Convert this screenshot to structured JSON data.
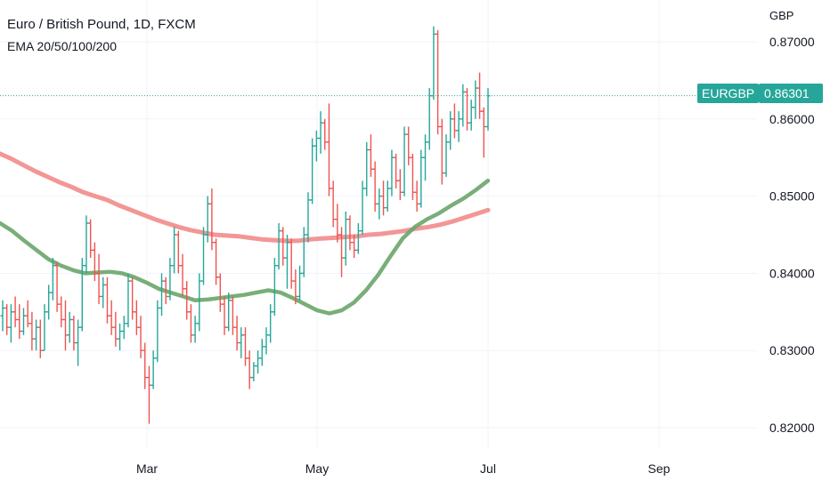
{
  "legend": {
    "title": "Euro / British Pound, 1D, FXCM",
    "indicator": "EMA 20/50/100/200"
  },
  "currency_label": "GBP",
  "price_tag": {
    "symbol": "EURGBP",
    "value": "0.86301"
  },
  "colors": {
    "up": "#26a69a",
    "down": "#ef5350",
    "ema_green": "#6aa56a",
    "ema_red": "#f28b8b",
    "grid": "#f0f3fa",
    "last_price_line": "#26a69a"
  },
  "chart_data": {
    "type": "line",
    "title": "Euro / British Pound, 1D, FXCM",
    "xlabel": "",
    "ylabel": "GBP",
    "x_ticks": [
      "Mar",
      "May",
      "Jul",
      "Sep"
    ],
    "y_ticks": [
      "0.82000",
      "0.83000",
      "0.84000",
      "0.85000",
      "0.86000",
      "0.87000"
    ],
    "ylim": [
      0.8185,
      0.8728
    ],
    "grid": true,
    "last_price": 0.86301,
    "series": [
      {
        "name": "",
        "style": "ohlc",
        "values": [
          [
            0.8345,
            0.8365,
            0.8325,
            0.8355
          ],
          [
            0.8355,
            0.836,
            0.832,
            0.833
          ],
          [
            0.833,
            0.836,
            0.831,
            0.835
          ],
          [
            0.835,
            0.837,
            0.833,
            0.834
          ],
          [
            0.834,
            0.836,
            0.8315,
            0.8325
          ],
          [
            0.8325,
            0.8355,
            0.832,
            0.8345
          ],
          [
            0.8345,
            0.8365,
            0.833,
            0.8335
          ],
          [
            0.8335,
            0.835,
            0.83,
            0.8315
          ],
          [
            0.8315,
            0.834,
            0.83,
            0.833
          ],
          [
            0.833,
            0.834,
            0.829,
            0.83
          ],
          [
            0.83,
            0.836,
            0.83,
            0.835
          ],
          [
            0.835,
            0.8385,
            0.834,
            0.8375
          ],
          [
            0.8375,
            0.842,
            0.8365,
            0.841
          ],
          [
            0.841,
            0.8415,
            0.835,
            0.836
          ],
          [
            0.836,
            0.837,
            0.833,
            0.834
          ],
          [
            0.834,
            0.8365,
            0.83,
            0.832
          ],
          [
            0.832,
            0.835,
            0.831,
            0.834
          ],
          [
            0.834,
            0.8345,
            0.83,
            0.831
          ],
          [
            0.831,
            0.834,
            0.828,
            0.833
          ],
          [
            0.833,
            0.842,
            0.8325,
            0.841
          ],
          [
            0.841,
            0.8475,
            0.84,
            0.8465
          ],
          [
            0.8465,
            0.847,
            0.842,
            0.843
          ],
          [
            0.843,
            0.844,
            0.839,
            0.84
          ],
          [
            0.84,
            0.8425,
            0.836,
            0.837
          ],
          [
            0.837,
            0.8395,
            0.8355,
            0.8385
          ],
          [
            0.8385,
            0.8395,
            0.8335,
            0.8345
          ],
          [
            0.8345,
            0.8365,
            0.832,
            0.833
          ],
          [
            0.833,
            0.835,
            0.8305,
            0.8315
          ],
          [
            0.8315,
            0.8335,
            0.83,
            0.8325
          ],
          [
            0.8325,
            0.8345,
            0.8315,
            0.8335
          ],
          [
            0.8335,
            0.84,
            0.833,
            0.839
          ],
          [
            0.839,
            0.8395,
            0.834,
            0.835
          ],
          [
            0.835,
            0.8365,
            0.832,
            0.833
          ],
          [
            0.833,
            0.8345,
            0.829,
            0.83
          ],
          [
            0.83,
            0.831,
            0.825,
            0.8265
          ],
          [
            0.8265,
            0.828,
            0.8205,
            0.8255
          ],
          [
            0.8255,
            0.83,
            0.825,
            0.829
          ],
          [
            0.829,
            0.8365,
            0.8285,
            0.8355
          ],
          [
            0.8355,
            0.84,
            0.8345,
            0.839
          ],
          [
            0.839,
            0.8395,
            0.836,
            0.837
          ],
          [
            0.837,
            0.842,
            0.8365,
            0.841
          ],
          [
            0.841,
            0.846,
            0.84,
            0.845
          ],
          [
            0.845,
            0.8455,
            0.84,
            0.841
          ],
          [
            0.841,
            0.8425,
            0.837,
            0.838
          ],
          [
            0.838,
            0.839,
            0.834,
            0.835
          ],
          [
            0.835,
            0.836,
            0.831,
            0.832
          ],
          [
            0.832,
            0.8345,
            0.831,
            0.8335
          ],
          [
            0.8335,
            0.84,
            0.8325,
            0.839
          ],
          [
            0.839,
            0.846,
            0.8385,
            0.845
          ],
          [
            0.845,
            0.85,
            0.844,
            0.849
          ],
          [
            0.849,
            0.851,
            0.843,
            0.844
          ],
          [
            0.844,
            0.8445,
            0.8385,
            0.8395
          ],
          [
            0.8395,
            0.84,
            0.835,
            0.836
          ],
          [
            0.836,
            0.837,
            0.832,
            0.833
          ],
          [
            0.833,
            0.8375,
            0.8325,
            0.8365
          ],
          [
            0.8365,
            0.837,
            0.832,
            0.833
          ],
          [
            0.833,
            0.8345,
            0.83,
            0.831
          ],
          [
            0.831,
            0.833,
            0.829,
            0.832
          ],
          [
            0.832,
            0.833,
            0.828,
            0.829
          ],
          [
            0.829,
            0.83,
            0.825,
            0.8265
          ],
          [
            0.8265,
            0.8285,
            0.826,
            0.828
          ],
          [
            0.828,
            0.83,
            0.827,
            0.829
          ],
          [
            0.829,
            0.8315,
            0.828,
            0.8305
          ],
          [
            0.8305,
            0.833,
            0.8295,
            0.832
          ],
          [
            0.832,
            0.836,
            0.831,
            0.835
          ],
          [
            0.835,
            0.842,
            0.8345,
            0.841
          ],
          [
            0.841,
            0.8465,
            0.8405,
            0.8455
          ],
          [
            0.8455,
            0.846,
            0.841,
            0.842
          ],
          [
            0.842,
            0.845,
            0.838,
            0.844
          ],
          [
            0.844,
            0.8445,
            0.838,
            0.839
          ],
          [
            0.839,
            0.8405,
            0.836,
            0.837
          ],
          [
            0.837,
            0.841,
            0.8365,
            0.84
          ],
          [
            0.84,
            0.846,
            0.8395,
            0.845
          ],
          [
            0.845,
            0.8505,
            0.844,
            0.8495
          ],
          [
            0.8495,
            0.8575,
            0.849,
            0.8565
          ],
          [
            0.8565,
            0.8585,
            0.8545,
            0.8575
          ],
          [
            0.8575,
            0.861,
            0.8555,
            0.8595
          ],
          [
            0.8595,
            0.86,
            0.856,
            0.857
          ],
          [
            0.857,
            0.862,
            0.85,
            0.851
          ],
          [
            0.851,
            0.852,
            0.846,
            0.847
          ],
          [
            0.847,
            0.849,
            0.844,
            0.845
          ],
          [
            0.845,
            0.846,
            0.8395,
            0.842
          ],
          [
            0.842,
            0.848,
            0.841,
            0.847
          ],
          [
            0.847,
            0.8475,
            0.843,
            0.844
          ],
          [
            0.844,
            0.845,
            0.842,
            0.843
          ],
          [
            0.843,
            0.8465,
            0.8425,
            0.8455
          ],
          [
            0.8455,
            0.852,
            0.845,
            0.851
          ],
          [
            0.851,
            0.857,
            0.85,
            0.856
          ],
          [
            0.856,
            0.858,
            0.8525,
            0.8535
          ],
          [
            0.8535,
            0.8545,
            0.848,
            0.849
          ],
          [
            0.849,
            0.851,
            0.847,
            0.85
          ],
          [
            0.85,
            0.852,
            0.8475,
            0.8485
          ],
          [
            0.8485,
            0.852,
            0.848,
            0.851
          ],
          [
            0.851,
            0.856,
            0.85,
            0.855
          ],
          [
            0.855,
            0.8555,
            0.851,
            0.852
          ],
          [
            0.852,
            0.8535,
            0.8495,
            0.8505
          ],
          [
            0.8505,
            0.859,
            0.85,
            0.858
          ],
          [
            0.858,
            0.859,
            0.854,
            0.855
          ],
          [
            0.855,
            0.8555,
            0.8495,
            0.8505
          ],
          [
            0.8505,
            0.852,
            0.848,
            0.849
          ],
          [
            0.849,
            0.856,
            0.8485,
            0.855
          ],
          [
            0.855,
            0.858,
            0.852,
            0.857
          ],
          [
            0.857,
            0.864,
            0.856,
            0.863
          ],
          [
            0.863,
            0.872,
            0.8625,
            0.871
          ],
          [
            0.871,
            0.8715,
            0.858,
            0.859
          ],
          [
            0.859,
            0.86,
            0.8515,
            0.853
          ],
          [
            0.853,
            0.858,
            0.8525,
            0.857
          ],
          [
            0.857,
            0.861,
            0.856,
            0.86
          ],
          [
            0.86,
            0.862,
            0.8575,
            0.8585
          ],
          [
            0.8585,
            0.861,
            0.857,
            0.86
          ],
          [
            0.86,
            0.8645,
            0.859,
            0.8635
          ],
          [
            0.8635,
            0.864,
            0.8585,
            0.8595
          ],
          [
            0.8595,
            0.8625,
            0.8585,
            0.8615
          ],
          [
            0.8615,
            0.865,
            0.86,
            0.864
          ],
          [
            0.864,
            0.866,
            0.86,
            0.861
          ],
          [
            0.861,
            0.8615,
            0.855,
            0.859
          ],
          [
            0.859,
            0.864,
            0.8585,
            0.863
          ]
        ]
      },
      {
        "name": "",
        "style": "line",
        "values": [
          0.8465,
          0.8455,
          0.8442,
          0.843,
          0.8418,
          0.841,
          0.8404,
          0.84,
          0.8401,
          0.8402,
          0.84,
          0.8395,
          0.8388,
          0.838,
          0.8375,
          0.837,
          0.8365,
          0.8366,
          0.8368,
          0.837,
          0.8372,
          0.8375,
          0.8378,
          0.8375,
          0.8368,
          0.836,
          0.8352,
          0.8348,
          0.8352,
          0.8362,
          0.8378,
          0.8398,
          0.8422,
          0.8445,
          0.846,
          0.847,
          0.8478,
          0.8488,
          0.8497,
          0.8508,
          0.852
        ]
      },
      {
        "name": "",
        "style": "line",
        "values": [
          0.8555,
          0.8548,
          0.854,
          0.8532,
          0.8525,
          0.8518,
          0.8512,
          0.8505,
          0.85,
          0.8495,
          0.8488,
          0.8482,
          0.8476,
          0.847,
          0.8465,
          0.846,
          0.8456,
          0.8453,
          0.845,
          0.8449,
          0.8448,
          0.8446,
          0.8444,
          0.8443,
          0.8442,
          0.8442,
          0.8444,
          0.8445,
          0.8446,
          0.8447,
          0.8448,
          0.845,
          0.8451,
          0.8453,
          0.8455,
          0.8458,
          0.846,
          0.8463,
          0.8467,
          0.8472,
          0.8477,
          0.8482
        ]
      }
    ]
  }
}
